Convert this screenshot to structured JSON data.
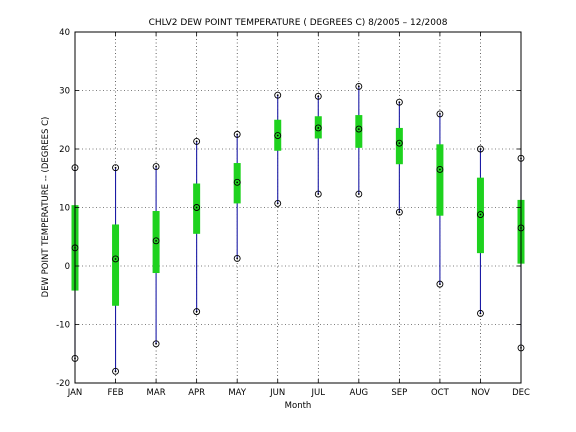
{
  "chart_data": {
    "type": "boxplot",
    "title": "CHLV2  DEW POINT TEMPERATURE ( DEGREES C) 8/2005 – 12/2008",
    "xlabel": "Month",
    "ylabel": "DEW POINT TEMPERATURE -- (DEGREES C)",
    "ylim": [
      -20,
      40
    ],
    "yticks": [
      -20,
      -10,
      0,
      10,
      20,
      30,
      40
    ],
    "grid": true,
    "categories": [
      "JAN",
      "FEB",
      "MAR",
      "APR",
      "MAY",
      "JUN",
      "JUL",
      "AUG",
      "SEP",
      "OCT",
      "NOV",
      "DEC"
    ],
    "min": [
      -15.8,
      -18.0,
      -13.3,
      -7.8,
      1.3,
      10.7,
      12.3,
      12.3,
      9.2,
      -3.1,
      -8.1,
      -14.0
    ],
    "q1": [
      -4.2,
      -6.8,
      -1.2,
      5.5,
      10.7,
      19.7,
      21.8,
      20.2,
      17.4,
      8.6,
      2.2,
      0.4
    ],
    "median": [
      3.1,
      1.2,
      4.3,
      10.0,
      14.3,
      22.3,
      23.6,
      23.4,
      21.0,
      16.5,
      8.8,
      6.5
    ],
    "q3": [
      10.4,
      7.1,
      9.4,
      14.1,
      17.6,
      25.0,
      25.6,
      25.8,
      23.6,
      20.8,
      15.1,
      11.3
    ],
    "max": [
      16.8,
      16.8,
      17.0,
      21.3,
      22.5,
      29.2,
      29.0,
      30.7,
      28.0,
      26.0,
      20.0,
      18.4
    ],
    "colors": {
      "whisker": "#1b1ba5",
      "box": "#1ed21e",
      "marker": "#000000",
      "grid": "#000000"
    }
  }
}
